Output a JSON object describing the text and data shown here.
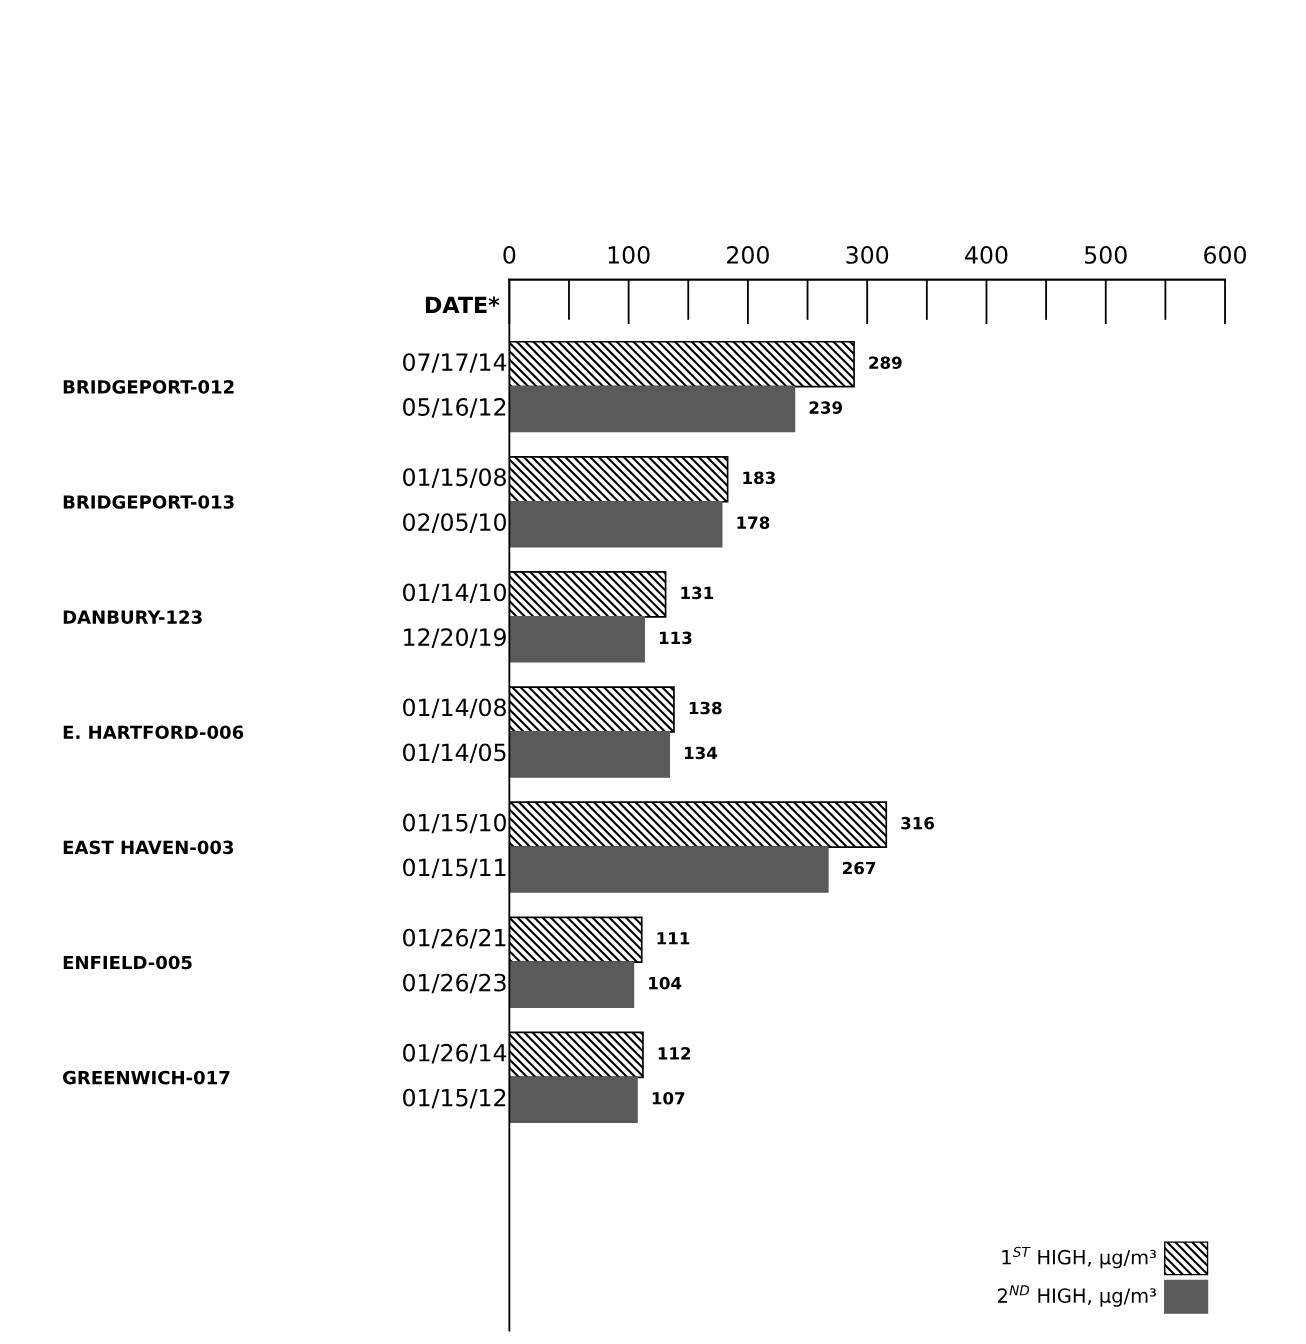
{
  "chart_data": {
    "type": "bar",
    "orientation": "horizontal",
    "categories": [
      "BRIDGEPORT-012",
      "BRIDGEPORT-013",
      "DANBURY-123",
      "E. HARTFORD-006",
      "EAST HAVEN-003",
      "ENFIELD-005",
      "GREENWICH-017"
    ],
    "series": [
      {
        "name": "1$^{ST}$ HIGH, µg/m³",
        "color": "#000000",
        "values": [
          289,
          183,
          131,
          138,
          316,
          111,
          112
        ]
      },
      {
        "name": "2$^{ND}$ HIGH, µg/m³",
        "color": "#5a5a5a",
        "values": [
          239,
          178,
          113,
          134,
          267,
          104,
          107
        ]
      }
    ],
    "x2lim": [
      0,
      600
    ],
    "x2ticks": [
      0,
      100,
      200,
      300,
      400,
      500,
      600
    ],
    "data_labels": true,
    "grid": false,
    "legend": "bottom right",
    "annotations": [
      "DATE*",
      "07/17/14",
      "05/16/12",
      "01/15/08",
      "02/05/10",
      "01/14/10",
      "12/20/19",
      "01/14/08",
      "01/14/05",
      "01/15/10",
      "01/15/11",
      "01/26/21",
      "01/26/23",
      "01/26/14",
      "01/15/12"
    ]
  }
}
